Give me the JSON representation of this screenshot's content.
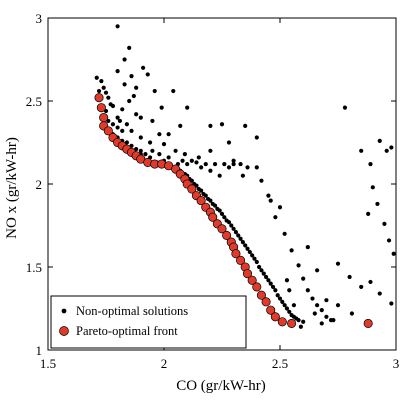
{
  "chart_data": {
    "type": "scatter",
    "xlabel": "CO (gr/kW-hr)",
    "ylabel": "NO x (gr/kW-hr)",
    "xlim": [
      1.5,
      3.0
    ],
    "ylim": [
      1.0,
      3.0
    ],
    "xticks": [
      1.5,
      2.0,
      2.5,
      3.0
    ],
    "yticks": [
      1.0,
      1.5,
      2.0,
      2.5,
      3.0
    ],
    "xtick_labels": [
      "1.5",
      "2",
      "2.5",
      "3"
    ],
    "ytick_labels": [
      "1",
      "1.5",
      "2",
      "2.5",
      "3"
    ],
    "grid": false,
    "legend_position": "bottom-left",
    "series": [
      {
        "name": "Non-optimal solutions",
        "color": "#000000",
        "marker": "small-dot",
        "points": [
          [
            1.73,
            2.62
          ],
          [
            1.74,
            2.58
          ],
          [
            1.75,
            2.55
          ],
          [
            1.76,
            2.52
          ],
          [
            1.77,
            2.48
          ],
          [
            1.75,
            2.44
          ],
          [
            1.74,
            2.4
          ],
          [
            1.76,
            2.38
          ],
          [
            1.78,
            2.36
          ],
          [
            1.8,
            2.34
          ],
          [
            1.82,
            2.32
          ],
          [
            1.76,
            2.33
          ],
          [
            1.78,
            2.3
          ],
          [
            1.8,
            2.28
          ],
          [
            1.82,
            2.26
          ],
          [
            1.84,
            2.25
          ],
          [
            1.86,
            2.23
          ],
          [
            1.88,
            2.21
          ],
          [
            1.9,
            2.2
          ],
          [
            1.92,
            2.18
          ],
          [
            1.79,
            2.26
          ],
          [
            1.81,
            2.24
          ],
          [
            1.83,
            2.22
          ],
          [
            1.85,
            2.2
          ],
          [
            1.87,
            2.18
          ],
          [
            1.89,
            2.16
          ],
          [
            1.91,
            2.15
          ],
          [
            1.93,
            2.14
          ],
          [
            1.95,
            2.13
          ],
          [
            1.97,
            2.13
          ],
          [
            1.99,
            2.12
          ],
          [
            2.01,
            2.12
          ],
          [
            2.03,
            2.11
          ],
          [
            2.05,
            2.1
          ],
          [
            2.07,
            2.08
          ],
          [
            2.09,
            2.06
          ],
          [
            2.11,
            2.03
          ],
          [
            2.13,
            2.0
          ],
          [
            2.15,
            1.97
          ],
          [
            2.17,
            1.94
          ],
          [
            2.19,
            1.91
          ],
          [
            2.21,
            1.88
          ],
          [
            2.23,
            1.85
          ],
          [
            2.25,
            1.82
          ],
          [
            2.27,
            1.78
          ],
          [
            2.29,
            1.75
          ],
          [
            2.31,
            1.71
          ],
          [
            2.33,
            1.67
          ],
          [
            2.35,
            1.63
          ],
          [
            2.37,
            1.59
          ],
          [
            2.39,
            1.55
          ],
          [
            2.41,
            1.5
          ],
          [
            2.43,
            1.46
          ],
          [
            2.45,
            1.42
          ],
          [
            2.47,
            1.38
          ],
          [
            2.49,
            1.33
          ],
          [
            2.51,
            1.29
          ],
          [
            2.53,
            1.25
          ],
          [
            2.55,
            1.21
          ],
          [
            2.57,
            1.19
          ],
          [
            2.1,
            2.05
          ],
          [
            2.12,
            2.02
          ],
          [
            2.14,
            1.99
          ],
          [
            2.16,
            1.96
          ],
          [
            2.18,
            1.93
          ],
          [
            2.2,
            1.9
          ],
          [
            2.22,
            1.87
          ],
          [
            2.24,
            1.84
          ],
          [
            2.26,
            1.8
          ],
          [
            2.28,
            1.77
          ],
          [
            2.3,
            1.73
          ],
          [
            2.32,
            1.69
          ],
          [
            2.34,
            1.65
          ],
          [
            2.36,
            1.61
          ],
          [
            2.38,
            1.57
          ],
          [
            2.4,
            1.53
          ],
          [
            2.42,
            1.48
          ],
          [
            2.44,
            1.44
          ],
          [
            2.46,
            1.4
          ],
          [
            2.48,
            1.36
          ],
          [
            2.5,
            1.31
          ],
          [
            2.52,
            1.27
          ],
          [
            2.54,
            1.23
          ],
          [
            2.56,
            1.2
          ],
          [
            2.58,
            1.18
          ],
          [
            2.6,
            1.17
          ],
          [
            2.0,
            2.14
          ],
          [
            2.06,
            2.12
          ],
          [
            2.1,
            2.12
          ],
          [
            2.14,
            2.13
          ],
          [
            2.18,
            2.12
          ],
          [
            2.22,
            2.12
          ],
          [
            2.26,
            2.12
          ],
          [
            2.3,
            2.12
          ],
          [
            2.33,
            2.12
          ],
          [
            2.36,
            2.1
          ],
          [
            2.08,
            2.14
          ],
          [
            2.12,
            2.14
          ],
          [
            2.16,
            2.1
          ],
          [
            2.2,
            2.08
          ],
          [
            2.24,
            2.05
          ],
          [
            2.28,
            2.1
          ],
          [
            2.34,
            2.05
          ],
          [
            2.4,
            2.1
          ],
          [
            2.45,
            1.93
          ],
          [
            2.5,
            1.86
          ],
          [
            1.8,
            2.4
          ],
          [
            1.84,
            2.36
          ],
          [
            1.86,
            2.32
          ],
          [
            1.9,
            2.28
          ],
          [
            1.94,
            2.25
          ],
          [
            1.98,
            2.3
          ],
          [
            2.0,
            2.24
          ],
          [
            1.82,
            2.45
          ],
          [
            1.85,
            2.5
          ],
          [
            1.88,
            2.42
          ],
          [
            1.8,
            2.95
          ],
          [
            1.83,
            2.75
          ],
          [
            1.85,
            2.82
          ],
          [
            1.86,
            2.65
          ],
          [
            1.88,
            2.58
          ],
          [
            1.9,
            2.4
          ],
          [
            1.95,
            2.38
          ],
          [
            2.02,
            2.3
          ],
          [
            2.05,
            2.2
          ],
          [
            2.07,
            2.35
          ],
          [
            1.8,
            2.68
          ],
          [
            1.83,
            2.6
          ],
          [
            1.91,
            2.7
          ],
          [
            1.93,
            2.66
          ],
          [
            1.99,
            2.46
          ],
          [
            2.04,
            2.56
          ],
          [
            1.87,
            2.53
          ],
          [
            1.96,
            2.56
          ],
          [
            1.9,
            2.18
          ],
          [
            1.94,
            2.16
          ],
          [
            2.1,
            2.46
          ],
          [
            2.2,
            2.35
          ],
          [
            2.25,
            2.36
          ],
          [
            2.28,
            2.25
          ],
          [
            2.3,
            2.14
          ],
          [
            2.35,
            2.35
          ],
          [
            2.4,
            2.28
          ],
          [
            2.42,
            2.02
          ],
          [
            2.46,
            1.9
          ],
          [
            2.48,
            1.8
          ],
          [
            2.52,
            1.7
          ],
          [
            2.55,
            1.6
          ],
          [
            2.58,
            1.51
          ],
          [
            2.6,
            1.43
          ],
          [
            2.62,
            1.36
          ],
          [
            2.64,
            1.31
          ],
          [
            2.66,
            1.27
          ],
          [
            2.68,
            1.24
          ],
          [
            2.7,
            1.2
          ],
          [
            2.72,
            1.18
          ],
          [
            2.78,
            2.46
          ],
          [
            2.85,
            2.2
          ],
          [
            2.89,
            2.12
          ],
          [
            2.93,
            2.26
          ],
          [
            2.96,
            2.2
          ],
          [
            2.98,
            2.22
          ],
          [
            2.88,
            1.82
          ],
          [
            2.9,
            1.98
          ],
          [
            2.92,
            1.88
          ],
          [
            2.95,
            1.76
          ],
          [
            2.97,
            1.66
          ],
          [
            2.99,
            1.58
          ],
          [
            2.62,
            1.62
          ],
          [
            2.66,
            1.48
          ],
          [
            2.75,
            1.52
          ],
          [
            2.8,
            1.44
          ],
          [
            2.85,
            1.38
          ],
          [
            2.89,
            1.41
          ],
          [
            2.93,
            1.34
          ],
          [
            2.98,
            1.28
          ],
          [
            2.65,
            1.22
          ],
          [
            2.7,
            1.3
          ],
          [
            2.75,
            1.27
          ],
          [
            2.81,
            1.22
          ],
          [
            2.59,
            1.14
          ],
          [
            2.68,
            1.16
          ],
          [
            2.73,
            1.18
          ],
          [
            2.56,
            1.27
          ],
          [
            2.54,
            1.36
          ],
          [
            2.53,
            1.42
          ],
          [
            1.71,
            2.64
          ],
          [
            1.72,
            2.56
          ],
          [
            1.78,
            2.47
          ],
          [
            1.81,
            2.38
          ],
          [
            1.95,
            2.2
          ],
          [
            1.98,
            2.18
          ],
          [
            2.02,
            2.16
          ],
          [
            2.09,
            2.18
          ],
          [
            2.15,
            2.16
          ],
          [
            2.2,
            2.2
          ]
        ]
      },
      {
        "name": "Pareto-optimal front",
        "color": "#e03a2a",
        "marker": "circle",
        "points": [
          [
            1.72,
            2.52
          ],
          [
            1.73,
            2.46
          ],
          [
            1.74,
            2.4
          ],
          [
            1.74,
            2.35
          ],
          [
            1.76,
            2.32
          ],
          [
            1.78,
            2.28
          ],
          [
            1.8,
            2.25
          ],
          [
            1.82,
            2.23
          ],
          [
            1.84,
            2.21
          ],
          [
            1.86,
            2.19
          ],
          [
            1.88,
            2.17
          ],
          [
            1.9,
            2.15
          ],
          [
            1.93,
            2.13
          ],
          [
            1.96,
            2.12
          ],
          [
            1.99,
            2.12
          ],
          [
            2.02,
            2.11
          ],
          [
            2.05,
            2.09
          ],
          [
            2.07,
            2.06
          ],
          [
            2.09,
            2.03
          ],
          [
            2.1,
            2.0
          ],
          [
            2.12,
            1.97
          ],
          [
            2.14,
            1.93
          ],
          [
            2.16,
            1.9
          ],
          [
            2.18,
            1.86
          ],
          [
            2.2,
            1.83
          ],
          [
            2.21,
            1.8
          ],
          [
            2.23,
            1.76
          ],
          [
            2.25,
            1.73
          ],
          [
            2.27,
            1.69
          ],
          [
            2.29,
            1.65
          ],
          [
            2.3,
            1.62
          ],
          [
            2.31,
            1.58
          ],
          [
            2.33,
            1.54
          ],
          [
            2.35,
            1.5
          ],
          [
            2.36,
            1.46
          ],
          [
            2.38,
            1.42
          ],
          [
            2.4,
            1.38
          ],
          [
            2.42,
            1.33
          ],
          [
            2.44,
            1.29
          ],
          [
            2.46,
            1.24
          ],
          [
            2.48,
            1.2
          ],
          [
            2.51,
            1.17
          ],
          [
            2.55,
            1.16
          ],
          [
            2.88,
            1.16
          ]
        ]
      }
    ]
  }
}
